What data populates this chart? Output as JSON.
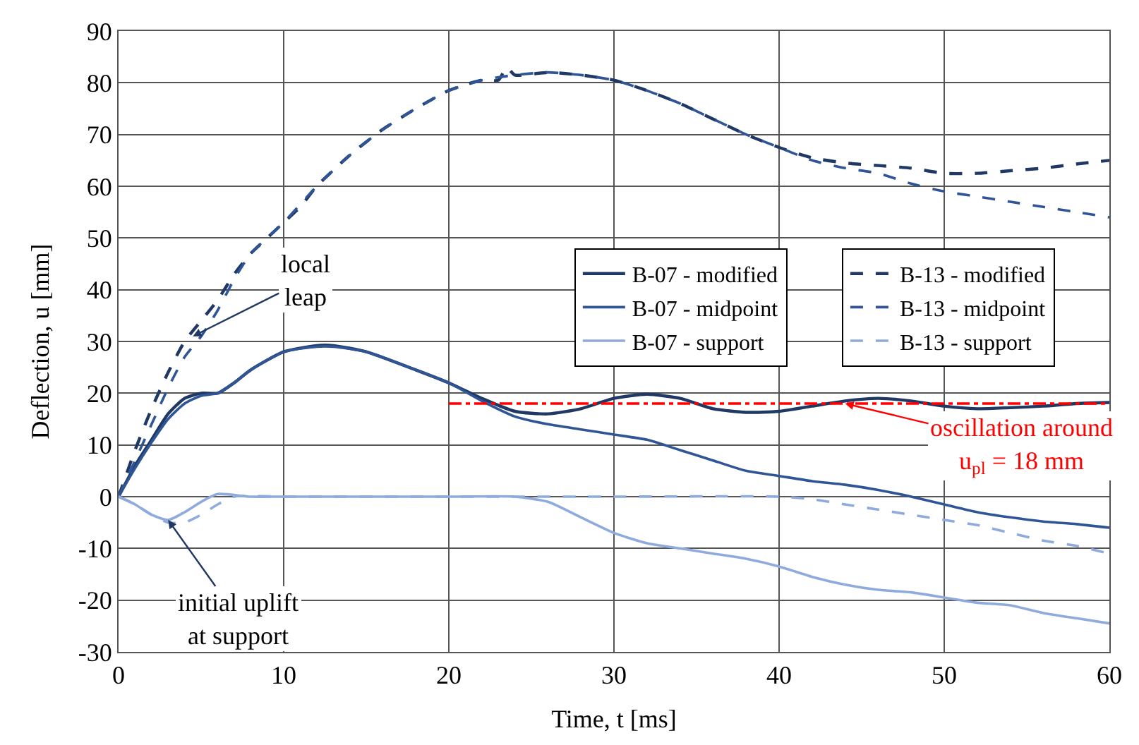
{
  "chart_data": {
    "type": "line",
    "xlabel": "Time, t [ms]",
    "ylabel": "Deflection, u [mm]",
    "xlim": [
      0,
      60
    ],
    "xticks": [
      0,
      10,
      20,
      30,
      40,
      50,
      60
    ],
    "ylim": [
      -30,
      90
    ],
    "yticks": [
      -30,
      -20,
      -10,
      0,
      10,
      20,
      30,
      40,
      50,
      60,
      70,
      80,
      90
    ],
    "grid": true,
    "legend": "right",
    "x": [
      0,
      1,
      2,
      3,
      4,
      5,
      6,
      7,
      8,
      10,
      12,
      13,
      15,
      18,
      20,
      22,
      24,
      26,
      28,
      30,
      32,
      34,
      36,
      38,
      40,
      42,
      44,
      46,
      48,
      50,
      52,
      54,
      56,
      58,
      60
    ],
    "series": [
      {
        "name": "B-07 - modified",
        "color": "#203864",
        "line_style": "solid",
        "values": [
          0,
          6,
          11,
          16,
          19,
          20,
          20,
          22,
          24.5,
          28,
          29.2,
          29.2,
          28,
          24.5,
          22,
          19,
          16.5,
          16,
          17,
          19,
          19.8,
          19,
          17,
          16.3,
          16.5,
          17.5,
          18.5,
          19,
          18.5,
          17.5,
          17,
          17.2,
          17.5,
          18,
          18.2
        ]
      },
      {
        "name": "B-13 - modified",
        "color": "#203864",
        "line_style": "dashed",
        "x": [
          0,
          1,
          2,
          3,
          4,
          5,
          6,
          7,
          8,
          9,
          10,
          11,
          12,
          14,
          16,
          18,
          20,
          22,
          23,
          23.5,
          24,
          26,
          28,
          30,
          32,
          34,
          36,
          38,
          40,
          42,
          44,
          46,
          48,
          50,
          52,
          54,
          56,
          58,
          60
        ],
        "values": [
          0,
          9,
          17,
          24,
          30,
          34,
          38,
          43,
          47,
          50,
          53,
          56,
          60,
          66,
          71,
          75,
          78.5,
          80.5,
          80.5,
          83,
          81.5,
          82,
          81.5,
          80.5,
          78.5,
          76,
          73,
          70,
          67.5,
          65.5,
          64.5,
          64,
          63.5,
          62.5,
          62.5,
          63,
          63.5,
          64.3,
          65
        ]
      },
      {
        "name": "B-07 - midpoint",
        "color": "#2f5597",
        "line_style": "solid",
        "values": [
          0,
          5.5,
          10.5,
          15,
          18,
          19.5,
          20,
          22,
          24.5,
          28,
          29,
          29,
          28,
          24.5,
          22,
          18.5,
          15.5,
          14,
          13,
          12,
          11,
          9,
          7,
          5,
          4,
          3,
          2.3,
          1.3,
          0,
          -1.5,
          -3,
          -4,
          -4.8,
          -5.3,
          -6
        ]
      },
      {
        "name": "B-13 - midpoint",
        "color": "#2f5597",
        "line_style": "dashed",
        "x": [
          0,
          1,
          2,
          3,
          4,
          5,
          6,
          7,
          8,
          10,
          12,
          14,
          16,
          18,
          20,
          22,
          24,
          26,
          28,
          30,
          32,
          34,
          36,
          38,
          40,
          42,
          44,
          46,
          48,
          50,
          52,
          54,
          56,
          58,
          60
        ],
        "values": [
          0,
          7,
          14,
          21,
          27,
          31,
          36,
          42,
          47,
          53,
          60,
          66,
          71,
          75,
          78.5,
          80.5,
          81.5,
          82,
          81.5,
          80.5,
          78.5,
          76,
          73,
          70,
          67.5,
          65,
          63.5,
          62.5,
          60.5,
          59,
          58,
          57,
          56,
          55,
          54
        ]
      },
      {
        "name": "B-07 - support",
        "color": "#8faadc",
        "line_style": "solid",
        "x": [
          0,
          1,
          2,
          3,
          4,
          5,
          6,
          8,
          10,
          20,
          24,
          26,
          28,
          30,
          32,
          34,
          36,
          38,
          40,
          42,
          44,
          46,
          48,
          50,
          52,
          54,
          56,
          58,
          60
        ],
        "values": [
          0,
          -1.5,
          -3.5,
          -4.5,
          -3,
          -1,
          0.5,
          0,
          0,
          0,
          0,
          -1,
          -4,
          -7,
          -9,
          -10,
          -11,
          -12,
          -13.5,
          -15.5,
          -17,
          -18,
          -18.5,
          -19.5,
          -20.5,
          -21,
          -22.5,
          -23.5,
          -24.5
        ]
      },
      {
        "name": "B-13 - support",
        "color": "#8faadc",
        "line_style": "dashed",
        "x": [
          0,
          1,
          2,
          3,
          4,
          5,
          6,
          7,
          10,
          20,
          30,
          40,
          42,
          44,
          46,
          48,
          50,
          52,
          54,
          56,
          58,
          60
        ],
        "values": [
          0,
          -1.5,
          -3.5,
          -5,
          -5,
          -3.5,
          -1.5,
          0,
          0,
          0,
          0,
          0,
          -0.5,
          -1.5,
          -2.5,
          -3.5,
          -4.5,
          -5.5,
          -7,
          -8.5,
          -9.5,
          -11
        ]
      },
      {
        "color": "#ff0000",
        "line_style": "dashdot",
        "x": [
          20,
          60
        ],
        "values": [
          18,
          18
        ]
      }
    ],
    "annotations": [
      {
        "text": "local\nleap",
        "x": 4.5,
        "y": 31
      },
      {
        "text": "initial uplift\nat support",
        "x": 3,
        "y": -4.5
      },
      {
        "text": "oscillation around\nu$_{pl}$ = 18 mm",
        "x": 44,
        "y": 18
      }
    ]
  }
}
